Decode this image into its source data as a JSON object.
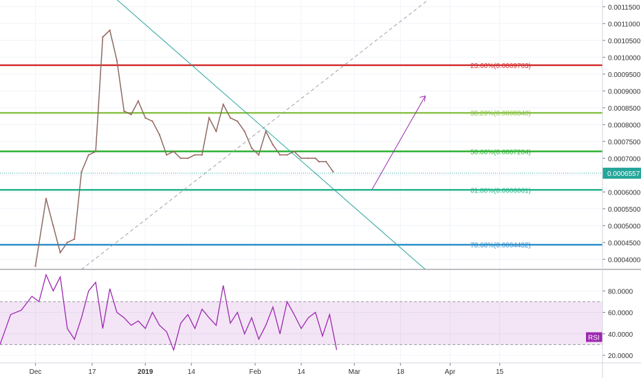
{
  "chart_data": [
    {
      "type": "line",
      "panel": "price",
      "title": "",
      "y_axis_ticks": [
        "0.0011500",
        "0.0011000",
        "0.0010500",
        "0.0010000",
        "0.0009500",
        "0.0009000",
        "0.0008500",
        "0.0008000",
        "0.0007500",
        "0.0007000",
        "0.0006500",
        "0.0006000",
        "0.0005500",
        "0.0005000",
        "0.0004500",
        "0.0004000"
      ],
      "ylim": [
        0.00037,
        0.00117
      ],
      "last_price_label": "0.0006557",
      "last_price": 0.0006557,
      "series": [
        {
          "x": [
            0,
            3,
            5,
            7,
            9,
            11,
            13,
            15,
            17,
            19,
            21,
            23,
            25,
            27,
            29,
            31,
            33,
            35,
            37,
            39,
            41,
            43,
            45,
            47,
            49,
            51,
            53,
            55,
            57,
            59,
            61,
            63,
            65,
            67,
            69,
            71,
            73,
            75,
            77,
            79,
            80,
            82,
            84
          ],
          "values": [
            0.00038,
            0.00058,
            0.0005,
            0.00042,
            0.00045,
            0.00046,
            0.00066,
            0.00071,
            0.00072,
            0.00106,
            0.00108,
            0.00099,
            0.00084,
            0.00083,
            0.00087,
            0.00082,
            0.00081,
            0.00077,
            0.00071,
            0.00072,
            0.0007,
            0.0007,
            0.00071,
            0.00071,
            0.00082,
            0.00078,
            0.00086,
            0.00082,
            0.00081,
            0.00078,
            0.00073,
            0.00071,
            0.00078,
            0.00074,
            0.00071,
            0.00071,
            0.00072,
            0.0007,
            0.0007,
            0.0007,
            0.00069,
            0.00069,
            0.00066
          ]
        }
      ],
      "fibonacci_levels": [
        {
          "label": "23.60%(0.0009763)",
          "value": 0.0009763,
          "color": "#d32f2f"
        },
        {
          "label": "38.20%(0.0008348)",
          "value": 0.0008348,
          "color": "#8bc34a"
        },
        {
          "label": "50.00%(0.0007204)",
          "value": 0.0007204,
          "color": "#2eb135"
        },
        {
          "label": "61.80%(0.0006061)",
          "value": 0.0006061,
          "color": "#26b58a"
        },
        {
          "label": "78.60%(0.0004432)",
          "value": 0.0004432,
          "color": "#2b8fcb"
        }
      ],
      "trend_lines": [
        {
          "name": "downtrend",
          "from": [
            22,
            0.00118
          ],
          "to": [
            110,
            0.00037
          ],
          "color": "#26a69a",
          "style": "solid"
        },
        {
          "name": "uptrend",
          "from": [
            13,
            0.00037
          ],
          "to": [
            112,
            0.00118
          ],
          "color": "#9e9e9e",
          "style": "dashed"
        },
        {
          "name": "projection-arrow",
          "from": [
            95,
            0.000608
          ],
          "to": [
            110,
            0.000885
          ],
          "color": "#9c27b0",
          "style": "solid"
        }
      ],
      "x_tick_labels": [
        {
          "label": "Dec",
          "x": 0
        },
        {
          "label": "17",
          "x": 16
        },
        {
          "label": "2019",
          "x": 31
        },
        {
          "label": "14",
          "x": 44
        },
        {
          "label": "Feb",
          "x": 62
        },
        {
          "label": "14",
          "x": 75
        },
        {
          "label": "Mar",
          "x": 90
        },
        {
          "label": "18",
          "x": 103
        },
        {
          "label": "Apr",
          "x": 117
        },
        {
          "label": "15",
          "x": 131
        }
      ],
      "xlim": [
        -10,
        160
      ]
    },
    {
      "type": "line",
      "panel": "rsi",
      "title": "",
      "y_axis_ticks": [
        "80.0000",
        "60.0000",
        "40.0000",
        "20.0000"
      ],
      "ylim": [
        13,
        100
      ],
      "band": [
        30,
        70
      ],
      "label": "RSI",
      "series": [
        {
          "x": [
            -10,
            -7,
            -4,
            -1,
            1,
            3,
            5,
            7,
            9,
            11,
            13,
            15,
            17,
            19,
            21,
            23,
            25,
            27,
            29,
            31,
            33,
            35,
            37,
            39,
            41,
            43,
            45,
            47,
            49,
            51,
            53,
            55,
            57,
            59,
            61,
            63,
            65,
            67,
            69,
            71,
            73,
            75,
            77,
            79,
            81,
            83,
            85
          ],
          "values": [
            30,
            58,
            62,
            75,
            70,
            95,
            80,
            93,
            45,
            35,
            55,
            80,
            88,
            45,
            82,
            60,
            55,
            48,
            52,
            45,
            60,
            48,
            42,
            25,
            50,
            58,
            45,
            63,
            55,
            48,
            85,
            50,
            60,
            40,
            55,
            35,
            48,
            65,
            40,
            70,
            58,
            45,
            55,
            60,
            38,
            58,
            25
          ]
        }
      ]
    }
  ]
}
